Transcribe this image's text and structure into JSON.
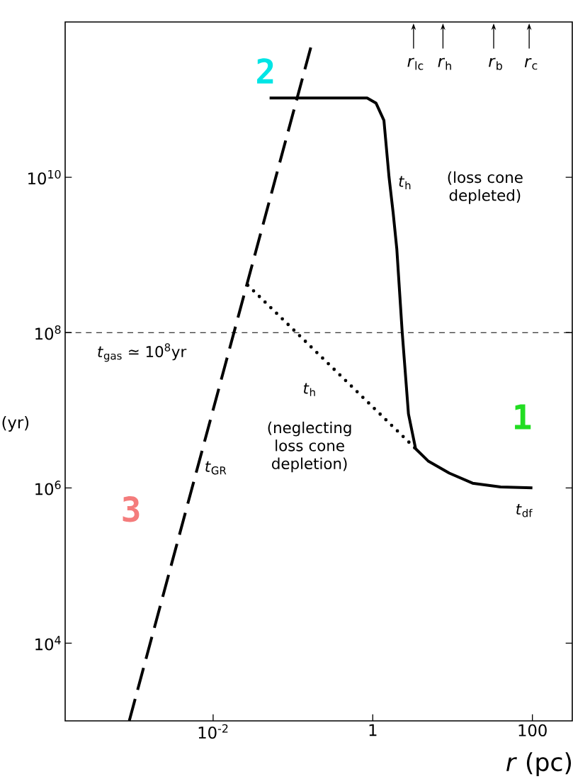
{
  "chart_data": {
    "type": "line",
    "log": "xy",
    "xlabel": "*r* (pc)",
    "ylabel": "(yr)",
    "xlim": [
      0.00014,
      316
    ],
    "ylim": [
      1000,
      1000000000000
    ],
    "xticks": [
      {
        "value": 0.01,
        "label": "10$^{-2}$"
      },
      1,
      100
    ],
    "yticks": [
      {
        "value": 10000,
        "label": "10$^{4}$"
      },
      {
        "value": 1000000,
        "label": "10$^{6}$"
      },
      {
        "value": 100000000,
        "label": "10$^{8}$"
      },
      {
        "value": 10000000000,
        "label": "10$^{10}$"
      }
    ],
    "series": [
      {
        "color": "#000000",
        "line_style": "solid",
        "x": [
          0.051,
          0.85,
          1.1,
          1.38,
          1.6,
          1.8,
          2.0,
          2.34,
          2.8,
          3.44,
          5,
          9.1,
          17.8,
          40,
          100
        ],
        "values": [
          105000000000,
          105000000000,
          90000000000,
          54000000000,
          10000000000,
          3500000000,
          1200000000,
          100000000,
          9000000,
          3200000,
          2200000,
          1550000,
          1150000,
          1030000,
          1000000
        ]
      },
      {
        "color": "#000000",
        "line_style": "dotted",
        "x": [
          0.0272,
          3.44
        ],
        "values": [
          407000000,
          3200000
        ]
      },
      {
        "color": "#000000",
        "line_style": "dashed",
        "x": [
          0.00089,
          0.17
        ],
        "values": [
          1000,
          500000000000
        ]
      }
    ],
    "ref_lines": [
      {
        "axis": "y",
        "value": 100000000,
        "line_style": "dashed",
        "color": "#000000"
      }
    ],
    "annotations": [
      "*r*$_{lc}$",
      "*r*$_{h}$",
      "*r*$_{b}$",
      "*r*$_{c}$",
      "*t*$_{h}$",
      "(loss cone depleted)",
      "*t*$_{gas}$ ≃ 10$^{8}$yr",
      "*t*$_{h}$",
      "(neglecting loss cone depletion)",
      "*t*$_{GR}$",
      "*t*$_{df}$",
      "1",
      "2",
      "3"
    ]
  }
}
